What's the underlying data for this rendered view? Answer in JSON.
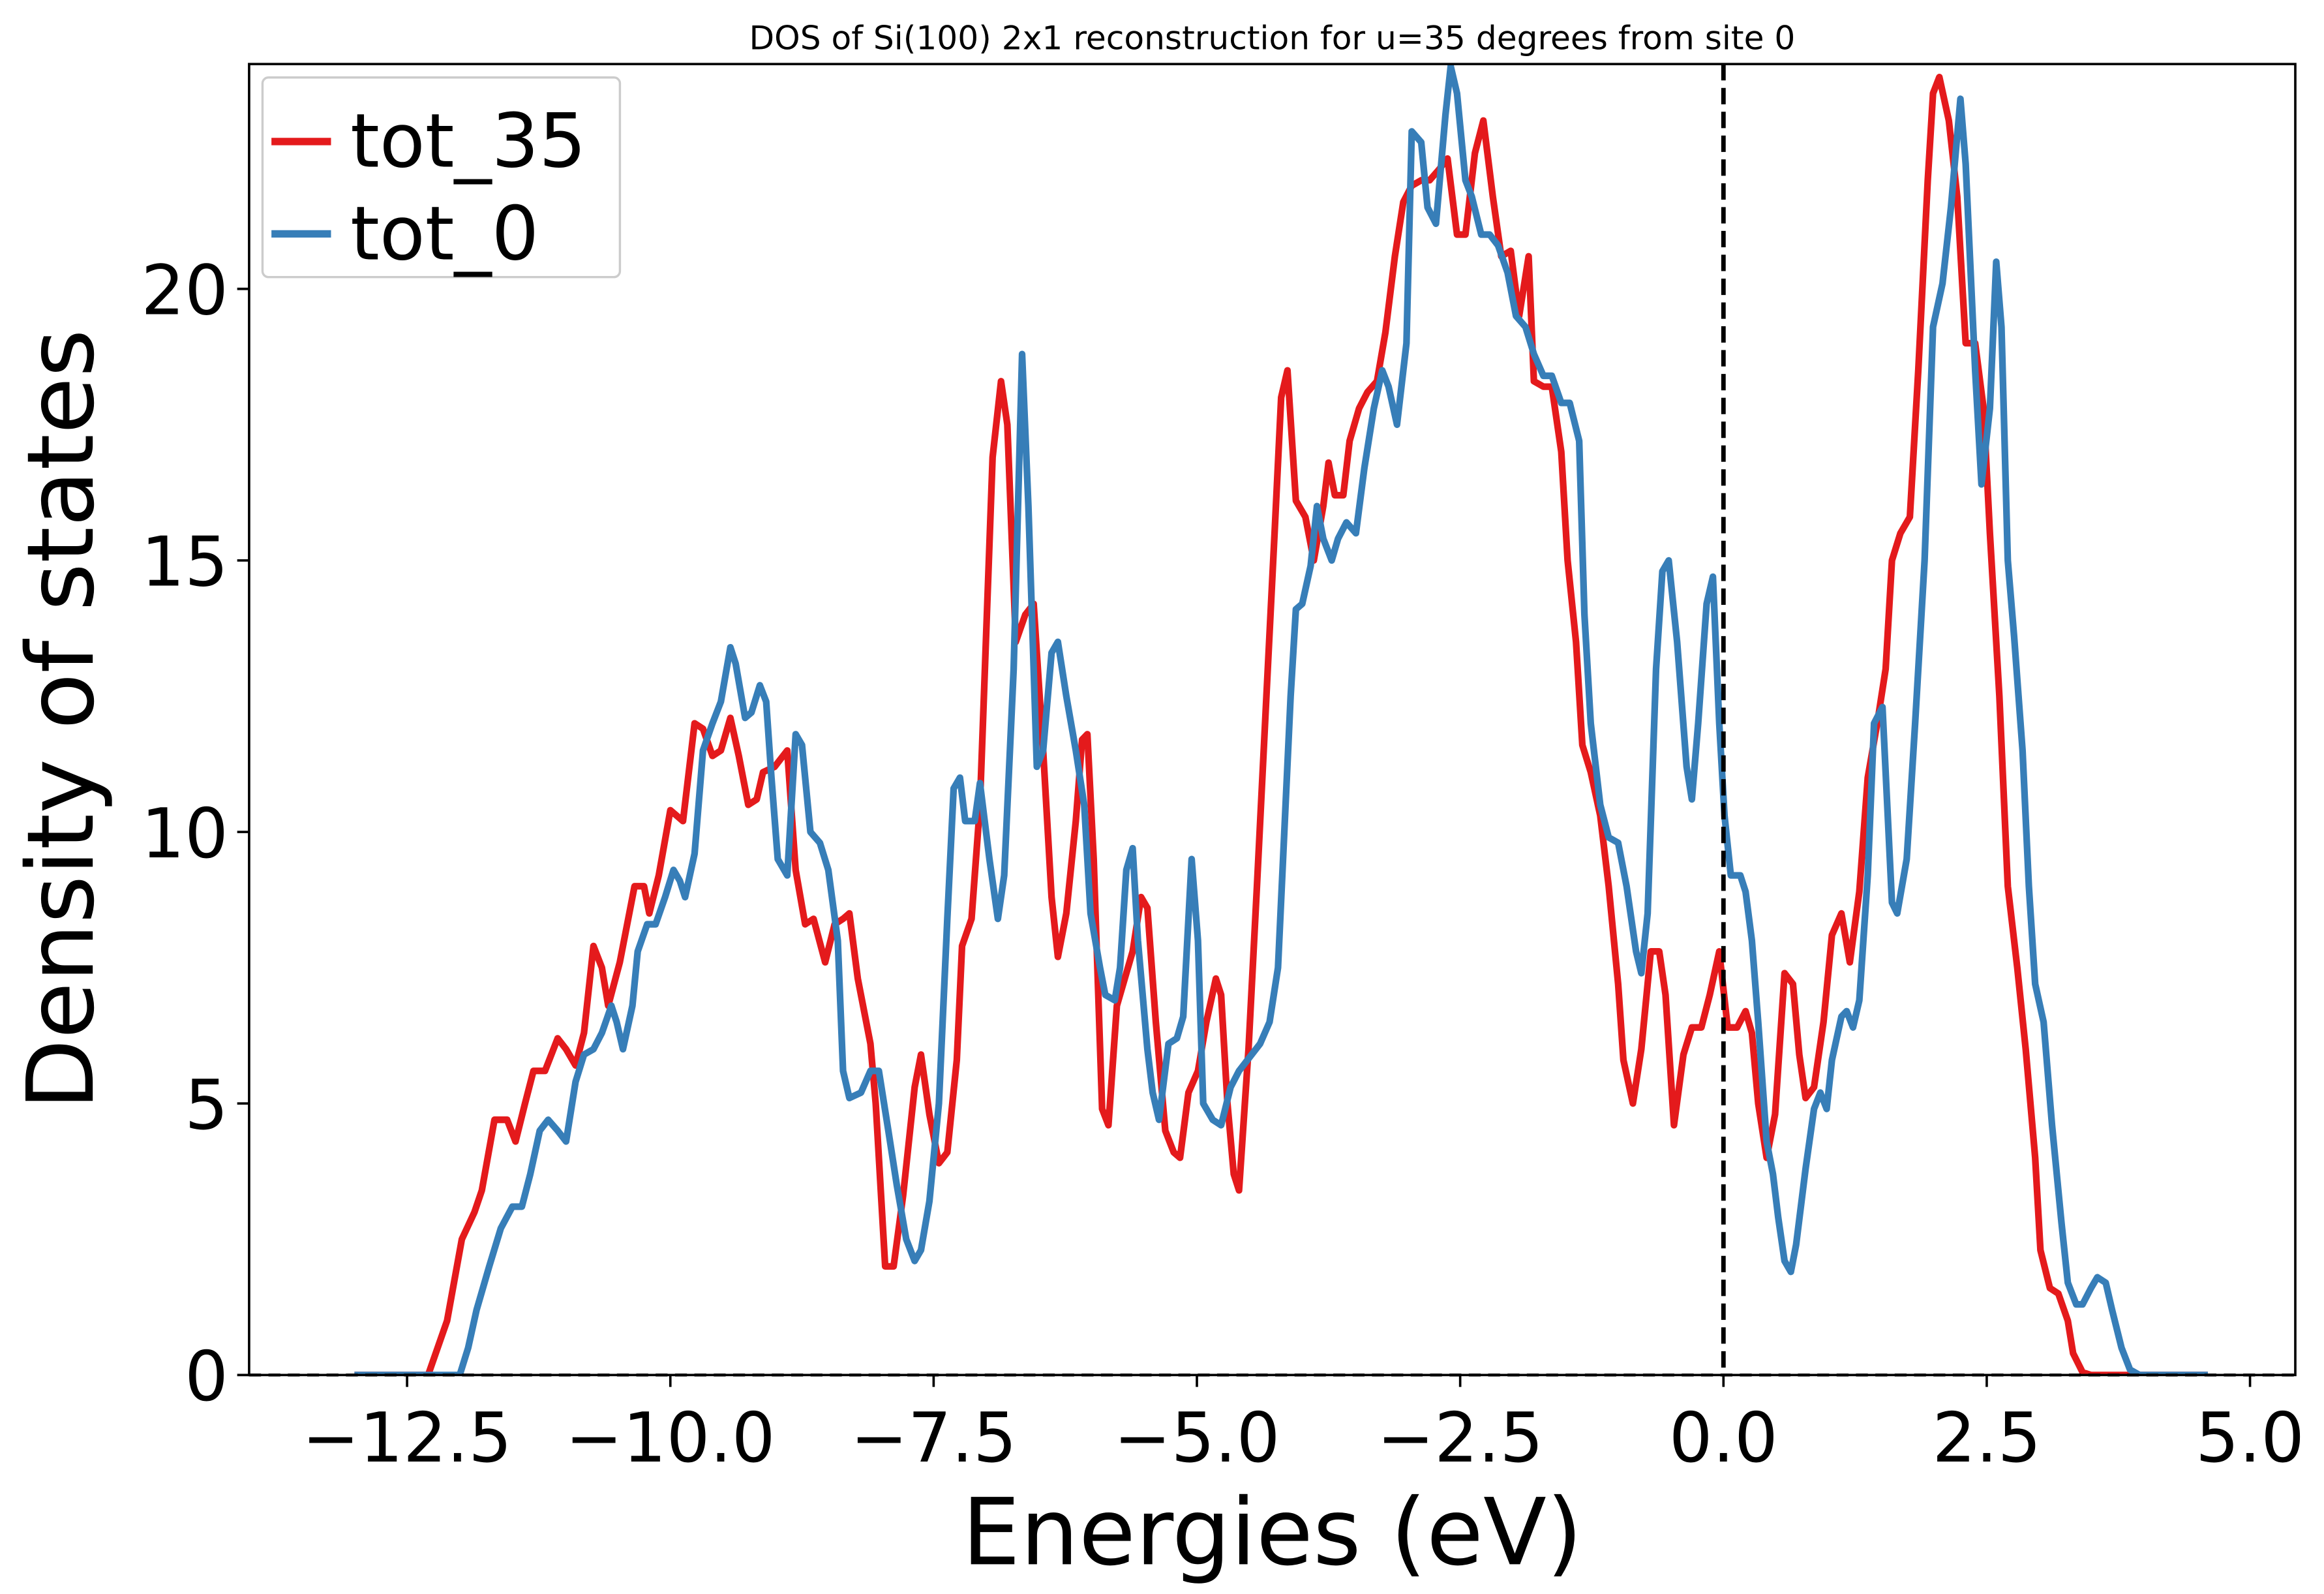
{
  "chart_data": {
    "type": "line",
    "title": "DOS of Si(100) 2x1 reconstruction for u=35 degrees from site 0",
    "x_label": "Energies (eV)",
    "y_label": "Density of states",
    "xlim": [
      -14.0,
      5.43
    ],
    "ylim": [
      0,
      24.14
    ],
    "xticks": [
      {
        "value": -12.5,
        "label": "−12.5"
      },
      {
        "value": -10,
        "label": "−10.0"
      },
      {
        "value": -7.5,
        "label": "−7.5"
      },
      {
        "value": -5,
        "label": "−5.0"
      },
      {
        "value": -2.5,
        "label": "−2.5"
      },
      {
        "value": 0,
        "label": "0.0"
      },
      2.5,
      {
        "value": 5,
        "label": "5.0"
      }
    ],
    "yticks": [
      0,
      5,
      10,
      15,
      20
    ],
    "grid": false,
    "legend": "upper left",
    "axvline": 0,
    "axhline": 0,
    "series": [
      {
        "name": "tot_35",
        "color": "#e41a1c",
        "x": [
          -13.0,
          -12.3,
          -12.12,
          -11.98,
          -11.86,
          -11.79,
          -11.67,
          -11.55,
          -11.47,
          -11.38,
          -11.3,
          -11.19,
          -11.07,
          -10.99,
          -10.9,
          -10.82,
          -10.73,
          -10.65,
          -10.59,
          -10.48,
          -10.34,
          -10.25,
          -10.2,
          -10.11,
          -10.0,
          -9.88,
          -9.77,
          -9.69,
          -9.6,
          -9.52,
          -9.43,
          -9.35,
          -9.26,
          -9.18,
          -9.12,
          -9.01,
          -8.89,
          -8.81,
          -8.72,
          -8.64,
          -8.53,
          -8.44,
          -8.36,
          -8.3,
          -8.22,
          -8.1,
          -8.05,
          -7.96,
          -7.88,
          -7.79,
          -7.68,
          -7.62,
          -7.54,
          -7.45,
          -7.37,
          -7.28,
          -7.23,
          -7.14,
          -7.06,
          -6.94,
          -6.86,
          -6.8,
          -6.72,
          -6.63,
          -6.55,
          -6.46,
          -6.38,
          -6.32,
          -6.24,
          -6.15,
          -6.09,
          -6.04,
          -5.98,
          -5.9,
          -5.84,
          -5.76,
          -5.67,
          -5.61,
          -5.53,
          -5.47,
          -5.39,
          -5.3,
          -5.22,
          -5.16,
          -5.08,
          -4.99,
          -4.91,
          -4.82,
          -4.77,
          -4.71,
          -4.65,
          -4.6,
          -4.51,
          -4.43,
          -4.34,
          -4.26,
          -4.2,
          -4.14,
          -4.06,
          -3.97,
          -3.89,
          -3.8,
          -3.75,
          -3.69,
          -3.61,
          -3.55,
          -3.46,
          -3.38,
          -3.29,
          -3.21,
          -3.12,
          -3.04,
          -2.96,
          -2.87,
          -2.79,
          -2.7,
          -2.62,
          -2.53,
          -2.45,
          -2.36,
          -2.28,
          -2.19,
          -2.11,
          -2.02,
          -1.94,
          -1.85,
          -1.8,
          -1.71,
          -1.63,
          -1.54,
          -1.48,
          -1.4,
          -1.34,
          -1.26,
          -1.17,
          -1.09,
          -1.0,
          -0.95,
          -0.86,
          -0.78,
          -0.69,
          -0.61,
          -0.55,
          -0.47,
          -0.38,
          -0.3,
          -0.21,
          -0.13,
          -0.04,
          0.04,
          0.13,
          0.21,
          0.27,
          0.33,
          0.41,
          0.49,
          0.58,
          0.66,
          0.72,
          0.78,
          0.86,
          0.95,
          1.03,
          1.12,
          1.2,
          1.29,
          1.37,
          1.46,
          1.54,
          1.6,
          1.68,
          1.77,
          1.85,
          1.94,
          1.99,
          2.05,
          2.14,
          2.22,
          2.3,
          2.39,
          2.47,
          2.53,
          2.62,
          2.7,
          2.79,
          2.87,
          2.96,
          3.01,
          3.1,
          3.18,
          3.27,
          3.32,
          3.41,
          3.49,
          4.6
        ],
        "values": [
          0,
          0,
          1.0,
          2.5,
          3.0,
          3.4,
          4.7,
          4.7,
          4.3,
          5.0,
          5.6,
          5.6,
          6.2,
          6.0,
          5.7,
          6.3,
          7.9,
          7.5,
          6.8,
          7.6,
          9.0,
          9.0,
          8.5,
          9.2,
          10.4,
          10.2,
          12.0,
          11.9,
          11.4,
          11.5,
          12.1,
          11.4,
          10.5,
          10.6,
          11.1,
          11.2,
          11.5,
          9.3,
          8.3,
          8.4,
          7.6,
          8.3,
          8.4,
          8.5,
          7.3,
          6.1,
          5.0,
          2.0,
          2.0,
          3.3,
          5.3,
          5.9,
          4.8,
          3.9,
          4.1,
          5.8,
          7.9,
          8.4,
          10.5,
          16.9,
          18.3,
          17.5,
          13.5,
          14.0,
          14.2,
          11.5,
          8.8,
          7.7,
          8.5,
          10.2,
          11.7,
          11.8,
          9.5,
          4.9,
          4.6,
          6.8,
          7.4,
          7.8,
          8.8,
          8.6,
          6.5,
          4.5,
          4.1,
          4.0,
          5.2,
          5.6,
          6.5,
          7.3,
          7.0,
          5.0,
          3.7,
          3.4,
          6.0,
          9.0,
          12.5,
          15.6,
          18.0,
          18.5,
          16.1,
          15.8,
          15.0,
          16.0,
          16.8,
          16.2,
          16.2,
          17.2,
          17.8,
          18.1,
          18.3,
          19.2,
          20.6,
          21.6,
          21.9,
          22.0,
          22.0,
          22.2,
          22.4,
          21.0,
          21.0,
          22.5,
          23.1,
          21.7,
          20.6,
          20.7,
          19.5,
          20.6,
          18.3,
          18.2,
          18.2,
          17.0,
          15.0,
          13.5,
          11.6,
          11.1,
          10.3,
          9.0,
          7.2,
          5.8,
          5.0,
          6.0,
          7.8,
          7.8,
          7.0,
          4.6,
          5.9,
          6.4,
          6.4,
          7.0,
          7.8,
          6.4,
          6.4,
          6.7,
          6.3,
          5.0,
          4.0,
          4.8,
          7.4,
          7.2,
          5.9,
          5.1,
          5.3,
          6.5,
          8.1,
          8.5,
          7.6,
          8.9,
          11.0,
          12.0,
          13.0,
          15.0,
          15.5,
          15.8,
          18.5,
          22.0,
          23.6,
          23.9,
          23.1,
          21.7,
          19.0,
          19.0,
          17.8,
          15.5,
          12.5,
          9.0,
          7.5,
          6.0,
          4.0,
          2.3,
          1.6,
          1.5,
          1.0,
          0.4,
          0.05,
          0,
          0
        ]
      },
      {
        "name": "tot_0",
        "color": "#377eb8",
        "x": [
          -13.0,
          -12.0,
          -11.92,
          -11.84,
          -11.72,
          -11.61,
          -11.5,
          -11.41,
          -11.33,
          -11.24,
          -11.16,
          -11.07,
          -10.99,
          -10.9,
          -10.82,
          -10.73,
          -10.65,
          -10.56,
          -10.51,
          -10.45,
          -10.36,
          -10.31,
          -10.22,
          -10.14,
          -10.05,
          -9.97,
          -9.91,
          -9.86,
          -9.77,
          -9.69,
          -9.6,
          -9.52,
          -9.43,
          -9.38,
          -9.29,
          -9.23,
          -9.15,
          -9.09,
          -9.04,
          -8.98,
          -8.89,
          -8.81,
          -8.75,
          -8.67,
          -8.58,
          -8.5,
          -8.41,
          -8.36,
          -8.3,
          -8.19,
          -8.1,
          -8.02,
          -7.93,
          -7.85,
          -7.76,
          -7.68,
          -7.62,
          -7.54,
          -7.45,
          -7.37,
          -7.31,
          -7.25,
          -7.2,
          -7.11,
          -7.06,
          -6.97,
          -6.89,
          -6.83,
          -6.74,
          -6.66,
          -6.6,
          -6.52,
          -6.46,
          -6.38,
          -6.32,
          -6.24,
          -6.15,
          -6.07,
          -6.01,
          -5.92,
          -5.87,
          -5.78,
          -5.73,
          -5.67,
          -5.61,
          -5.56,
          -5.47,
          -5.42,
          -5.36,
          -5.27,
          -5.19,
          -5.13,
          -5.05,
          -4.99,
          -4.94,
          -4.85,
          -4.77,
          -4.68,
          -4.6,
          -4.48,
          -4.4,
          -4.31,
          -4.23,
          -4.17,
          -4.11,
          -4.06,
          -4.0,
          -3.92,
          -3.86,
          -3.8,
          -3.72,
          -3.66,
          -3.58,
          -3.49,
          -3.41,
          -3.32,
          -3.24,
          -3.18,
          -3.1,
          -3.01,
          -2.96,
          -2.87,
          -2.81,
          -2.73,
          -2.64,
          -2.59,
          -2.53,
          -2.45,
          -2.39,
          -2.3,
          -2.22,
          -2.14,
          -2.05,
          -1.97,
          -1.88,
          -1.8,
          -1.71,
          -1.63,
          -1.54,
          -1.46,
          -1.37,
          -1.32,
          -1.26,
          -1.17,
          -1.09,
          -1.0,
          -0.92,
          -0.83,
          -0.78,
          -0.72,
          -0.64,
          -0.58,
          -0.52,
          -0.44,
          -0.35,
          -0.3,
          -0.24,
          -0.16,
          -0.1,
          -0.04,
          0.01,
          0.07,
          0.16,
          0.21,
          0.27,
          0.33,
          0.41,
          0.47,
          0.52,
          0.58,
          0.64,
          0.69,
          0.78,
          0.86,
          0.92,
          0.98,
          1.03,
          1.12,
          1.17,
          1.23,
          1.29,
          1.37,
          1.43,
          1.51,
          1.6,
          1.65,
          1.74,
          1.82,
          1.91,
          1.99,
          2.08,
          2.16,
          2.25,
          2.3,
          2.39,
          2.45,
          2.53,
          2.59,
          2.64,
          2.7,
          2.76,
          2.84,
          2.9,
          2.96,
          3.04,
          3.12,
          3.21,
          3.27,
          3.35,
          3.41,
          3.49,
          3.55,
          3.63,
          3.69,
          3.78,
          3.86,
          3.95,
          4.6
        ],
        "values": [
          0,
          0,
          0.5,
          1.2,
          2.0,
          2.7,
          3.1,
          3.1,
          3.7,
          4.5,
          4.7,
          4.5,
          4.3,
          5.4,
          5.9,
          6.0,
          6.3,
          6.8,
          6.5,
          6.0,
          6.8,
          7.8,
          8.3,
          8.3,
          8.8,
          9.3,
          9.1,
          8.8,
          9.6,
          11.5,
          12.0,
          12.4,
          13.4,
          13.1,
          12.1,
          12.2,
          12.7,
          12.4,
          11.0,
          9.5,
          9.2,
          11.8,
          11.6,
          10.0,
          9.8,
          9.3,
          8.0,
          5.6,
          5.1,
          5.2,
          5.6,
          5.6,
          4.5,
          3.5,
          2.5,
          2.1,
          2.3,
          3.2,
          5.0,
          8.4,
          10.8,
          11.0,
          10.2,
          10.2,
          10.9,
          9.5,
          8.4,
          9.2,
          13.0,
          18.8,
          16.0,
          11.2,
          11.5,
          13.3,
          13.5,
          12.5,
          11.5,
          10.5,
          8.5,
          7.5,
          7.0,
          6.9,
          7.5,
          9.3,
          9.7,
          8.0,
          6.0,
          5.2,
          4.7,
          6.1,
          6.2,
          6.6,
          9.5,
          8.0,
          5.0,
          4.7,
          4.6,
          5.3,
          5.6,
          5.9,
          6.1,
          6.5,
          7.5,
          10.0,
          12.5,
          14.1,
          14.2,
          14.9,
          16.0,
          15.4,
          15.0,
          15.4,
          15.7,
          15.5,
          16.7,
          17.8,
          18.5,
          18.2,
          17.5,
          19.0,
          22.9,
          22.7,
          21.5,
          21.2,
          23.2,
          24.1,
          23.6,
          22.0,
          21.7,
          21.0,
          21.0,
          20.8,
          20.3,
          19.5,
          19.3,
          18.8,
          18.4,
          18.4,
          17.9,
          17.9,
          17.2,
          14.0,
          12.0,
          10.5,
          9.9,
          9.8,
          9.0,
          7.8,
          7.4,
          8.5,
          13.0,
          14.8,
          15.0,
          13.5,
          11.2,
          10.6,
          12.0,
          14.2,
          14.7,
          12.0,
          10.3,
          9.2,
          9.2,
          8.9,
          8.0,
          6.5,
          4.3,
          3.7,
          2.9,
          2.1,
          1.9,
          2.4,
          3.8,
          4.9,
          5.2,
          4.9,
          5.8,
          6.6,
          6.7,
          6.4,
          6.9,
          9.2,
          12.0,
          12.3,
          8.7,
          8.5,
          9.5,
          12.0,
          15.0,
          19.3,
          20.1,
          21.5,
          23.5,
          22.3,
          18.5,
          16.4,
          17.8,
          20.5,
          19.3,
          15.0,
          13.6,
          11.5,
          9.0,
          7.2,
          6.5,
          4.6,
          2.8,
          1.7,
          1.3,
          1.3,
          1.6,
          1.8,
          1.7,
          1.2,
          0.5,
          0.1,
          0,
          0
        ]
      }
    ]
  }
}
